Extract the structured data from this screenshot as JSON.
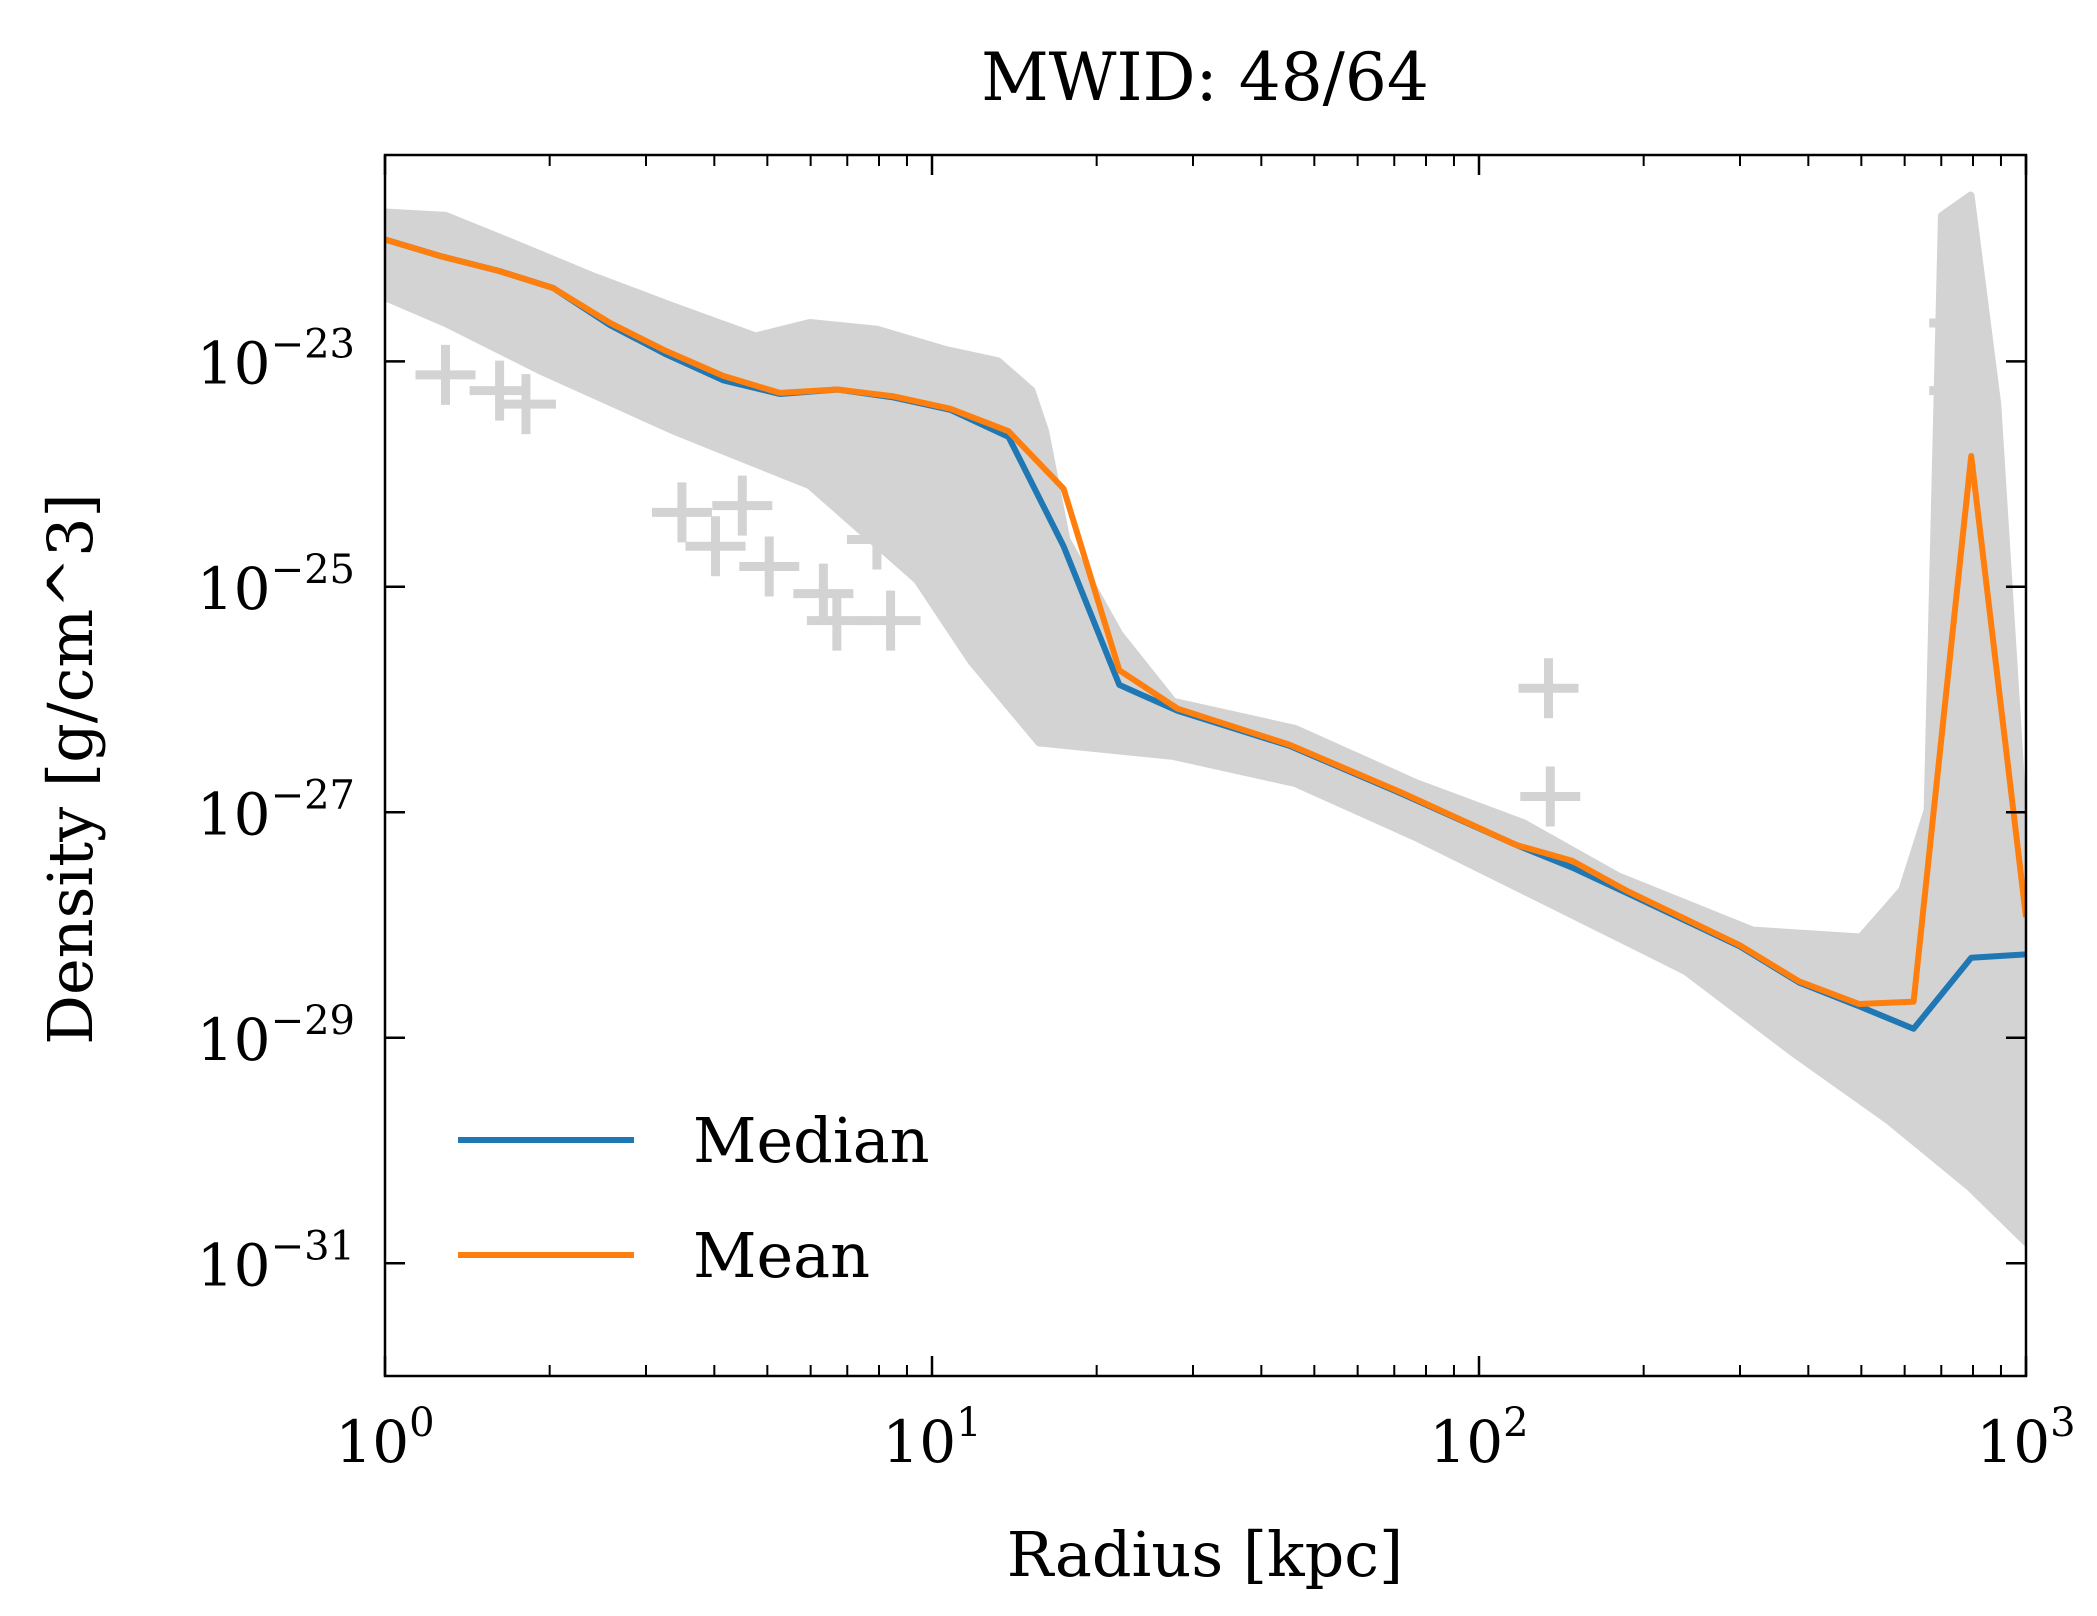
{
  "chart_data": {
    "type": "line",
    "title": "MWID: 48/64",
    "xlabel": "Radius [kpc]",
    "ylabel": "Density [g/cm^3]",
    "xscale": "log",
    "yscale": "log",
    "xlim": [
      1,
      1000
    ],
    "ylim_log10": [
      -32.0,
      -21.17
    ],
    "x_ticks": [
      {
        "value": 1,
        "label": "10",
        "exp": "0"
      },
      {
        "value": 10,
        "label": "10",
        "exp": "1"
      },
      {
        "value": 100,
        "label": "10",
        "exp": "2"
      },
      {
        "value": 1000,
        "label": "10",
        "exp": "3"
      }
    ],
    "y_ticks_log10": [
      {
        "value": -23,
        "label": "10",
        "exp": "−23"
      },
      {
        "value": -25,
        "label": "10",
        "exp": "−25"
      },
      {
        "value": -27,
        "label": "10",
        "exp": "−27"
      },
      {
        "value": -29,
        "label": "10",
        "exp": "−29"
      },
      {
        "value": -31,
        "label": "10",
        "exp": "−31"
      }
    ],
    "grid": false,
    "legend": {
      "placement": "lower-left",
      "entries": [
        "Median",
        "Mean"
      ]
    },
    "series": [
      {
        "name": "Median",
        "color": "#1f77b4",
        "x": [
          1,
          1.27,
          1.62,
          2.03,
          2.58,
          3.27,
          4.16,
          5.27,
          6.72,
          8.5,
          10.8,
          13.8,
          17.4,
          22.0,
          28.1,
          45,
          71.8,
          117,
          148,
          187,
          300,
          385,
          495,
          623,
          794,
          1000
        ],
        "log10_y": [
          -21.92,
          -22.07,
          -22.2,
          -22.35,
          -22.68,
          -22.94,
          -23.17,
          -23.29,
          -23.25,
          -23.32,
          -23.43,
          -23.67,
          -24.64,
          -25.87,
          -26.1,
          -26.41,
          -26.83,
          -27.29,
          -27.49,
          -27.72,
          -28.19,
          -28.51,
          -28.72,
          -28.92,
          -28.29,
          -28.26
        ]
      },
      {
        "name": "Mean",
        "color": "#ff7f0e",
        "x": [
          1,
          1.27,
          1.62,
          2.03,
          2.58,
          3.27,
          4.16,
          5.27,
          6.72,
          8.5,
          10.8,
          13.8,
          17.4,
          22.0,
          28.1,
          45,
          71.8,
          117,
          148,
          187,
          300,
          385,
          495,
          623,
          794,
          1000
        ],
        "log10_y": [
          -21.92,
          -22.07,
          -22.2,
          -22.35,
          -22.66,
          -22.91,
          -23.13,
          -23.28,
          -23.25,
          -23.31,
          -23.42,
          -23.62,
          -24.13,
          -25.74,
          -26.08,
          -26.4,
          -26.82,
          -27.29,
          -27.43,
          -27.7,
          -28.18,
          -28.5,
          -28.7,
          -28.68,
          -23.84,
          -27.93
        ]
      }
    ],
    "scatter_band": {
      "color": "#d3d3d3",
      "upper": {
        "x": [
          1,
          1.29,
          1.71,
          2.41,
          3.39,
          4.76,
          5.98,
          7.93,
          10.6,
          13.2,
          15.2,
          16.1,
          17.6,
          22.0,
          27.6,
          46.1,
          76.6,
          121,
          180,
          317,
          499,
          594,
          661,
          702,
          792,
          886,
          1000
        ],
        "log10_y": [
          -21.68,
          -21.71,
          -21.95,
          -22.25,
          -22.52,
          -22.78,
          -22.66,
          -22.72,
          -22.9,
          -23.0,
          -23.26,
          -23.62,
          -24.58,
          -25.42,
          -26.02,
          -26.26,
          -26.74,
          -27.1,
          -27.57,
          -28.05,
          -28.11,
          -27.69,
          -26.98,
          -21.71,
          -21.53,
          -23.38,
          -27.46
        ]
      },
      "lower": {
        "x": [
          1,
          1.29,
          1.92,
          3.39,
          5.98,
          9.4,
          11.8,
          15.7,
          27.6,
          46.1,
          76.6,
          135,
          239,
          375,
          560,
          792,
          1000
        ],
        "log10_y": [
          -22.43,
          -22.66,
          -23.08,
          -23.62,
          -24.1,
          -24.94,
          -25.66,
          -26.38,
          -26.5,
          -26.74,
          -27.22,
          -27.81,
          -28.41,
          -29.13,
          -29.73,
          -30.33,
          -30.81
        ]
      },
      "outliers": {
        "x": [
          1.29,
          1.62,
          1.81,
          3.49,
          4.5,
          4.02,
          5.04,
          6.33,
          7.93,
          8.4,
          10.6,
          6.7,
          134,
          135,
          755,
          755
        ],
        "log10_y": [
          -23.12,
          -23.26,
          -23.38,
          -24.34,
          -24.28,
          -24.64,
          -24.82,
          -25.06,
          -24.58,
          -25.3,
          -24.82,
          -25.3,
          -25.9,
          -26.86,
          -22.66,
          -23.26
        ]
      }
    }
  }
}
